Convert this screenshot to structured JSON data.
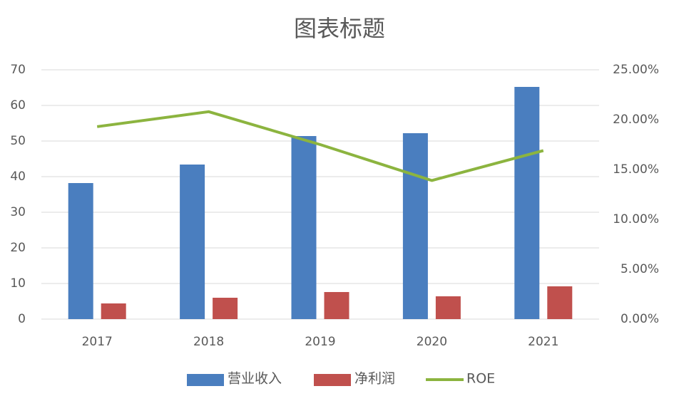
{
  "chart_data": {
    "type": "bar_line",
    "title": "图表标题",
    "categories": [
      "2017",
      "2018",
      "2019",
      "2020",
      "2021"
    ],
    "series": [
      {
        "name": "营业收入",
        "type": "bar",
        "color": "#4a7ebf",
        "values": [
          38.2,
          43.4,
          51.4,
          52.2,
          65.2
        ]
      },
      {
        "name": "净利润",
        "type": "bar",
        "color": "#c0504d",
        "values": [
          4.4,
          6.0,
          7.6,
          6.4,
          9.2
        ]
      },
      {
        "name": "ROE",
        "type": "line",
        "axis": "y2",
        "color": "#8cb43f",
        "values": [
          19.3,
          20.8,
          17.5,
          13.9,
          16.9
        ]
      }
    ],
    "ylim": [
      0,
      70
    ],
    "yticks": [
      0,
      10,
      20,
      30,
      40,
      50,
      60,
      70
    ],
    "y2lim": [
      0,
      25
    ],
    "y2ticks": [
      {
        "value": 0,
        "label": "0.00%"
      },
      {
        "value": 5,
        "label": "5.00%"
      },
      {
        "value": 10,
        "label": "10.00%"
      },
      {
        "value": 15,
        "label": "15.00%"
      },
      {
        "value": 20,
        "label": "20.00%"
      },
      {
        "value": 25,
        "label": "25.00%"
      }
    ],
    "grid": true,
    "legend": "bottom"
  }
}
